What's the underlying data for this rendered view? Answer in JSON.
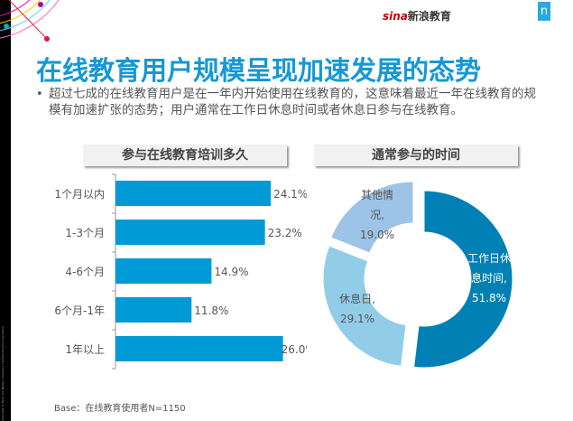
{
  "header": {
    "logo_text": "sina新浪教育",
    "logo_letter": "n",
    "copyright": "Copyright ©2012 The Nielsen Company. Confidential and proprietary."
  },
  "title": "在线教育用户规模呈现加速发展的态势",
  "bullet": "超过七成的在线教育用户是在一年内开始使用在线教育的，这意味着最近一年在线教育的规模有加速扩张的态势；用户通常在工作日休息时间或者休息日参与在线教育。",
  "base_note": "Base：在线教育使用者N=1150",
  "colors": {
    "title": "#1598d5",
    "bar": "#009ad6",
    "work": "#0080b4",
    "rest": "#92cde8",
    "other": "#9dc3e6"
  },
  "chart_data": [
    {
      "type": "bar",
      "orientation": "horizontal",
      "title": "参与在线教育培训多久",
      "categories": [
        "1个月以内",
        "1-3个月",
        "4-6个月",
        "6个月-1年",
        "1年以上"
      ],
      "values": [
        24.1,
        23.2,
        14.9,
        11.8,
        26.0
      ],
      "labels": [
        "24.1%",
        "23.2%",
        "14.9%",
        "11.8%",
        "26.0%"
      ],
      "unit": "%"
    },
    {
      "type": "pie",
      "donut": true,
      "title": "通常参与的时间",
      "categories": [
        "工作日休息时间,",
        "休息日,",
        "其他情况,"
      ],
      "values": [
        51.8,
        29.1,
        19.0
      ],
      "labels": [
        "51.8%",
        "29.1%",
        "19.0%"
      ]
    }
  ]
}
